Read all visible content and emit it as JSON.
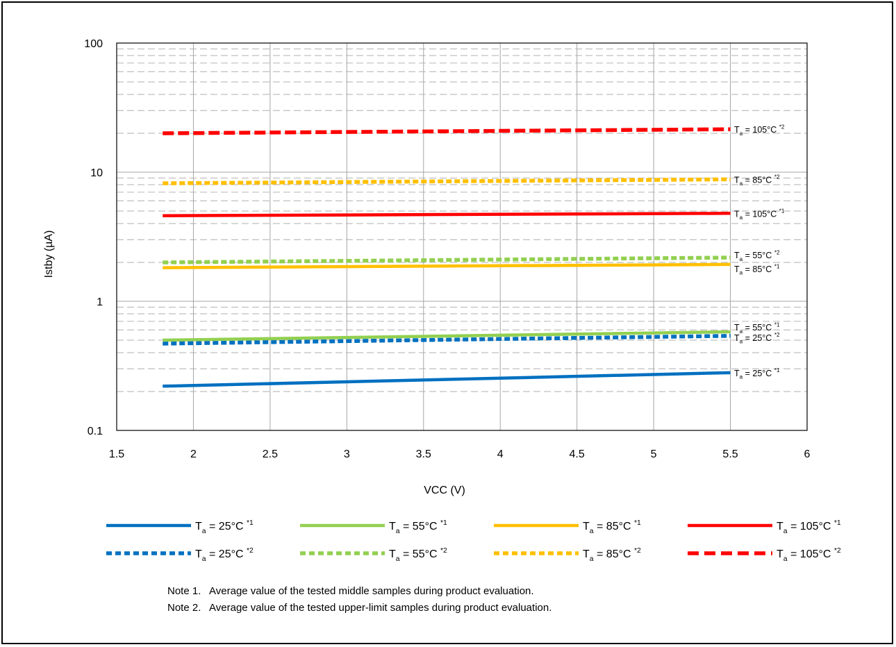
{
  "chart_data": {
    "type": "line",
    "xlabel": "VCC (V)",
    "ylabel": "Istby (µA)",
    "xlim": [
      1.5,
      6
    ],
    "ylim": [
      0.1,
      100
    ],
    "yscale": "log",
    "x_ticks": [
      "1.5",
      "2",
      "2.5",
      "3",
      "3.5",
      "4",
      "4.5",
      "5",
      "5.5",
      "6"
    ],
    "y_ticks": [
      "0.1",
      "1",
      "10",
      "100"
    ],
    "grid": true,
    "legend_position": "bottom",
    "series": [
      {
        "name_main": "T",
        "name_sub": "a",
        "name_rest": " = 25°C ",
        "name_sup": "*1",
        "style": "solid",
        "color": "#0070c0",
        "x": [
          1.8,
          5.5
        ],
        "y": [
          0.22,
          0.28
        ]
      },
      {
        "name_main": "T",
        "name_sub": "a",
        "name_rest": " = 55°C ",
        "name_sup": "*1",
        "style": "solid",
        "color": "#92d050",
        "x": [
          1.8,
          5.5
        ],
        "y": [
          0.5,
          0.58
        ]
      },
      {
        "name_main": "T",
        "name_sub": "a",
        "name_rest": " = 85°C ",
        "name_sup": "*1",
        "style": "solid",
        "color": "#ffc000",
        "x": [
          1.8,
          5.5
        ],
        "y": [
          1.82,
          1.93
        ]
      },
      {
        "name_main": "T",
        "name_sub": "a",
        "name_rest": " = 105°C ",
        "name_sup": "*1",
        "style": "solid",
        "color": "#ff0000",
        "x": [
          1.8,
          5.5
        ],
        "y": [
          4.6,
          4.8
        ]
      },
      {
        "name_main": "T",
        "name_sub": "a",
        "name_rest": " = 25°C ",
        "name_sup": "*2",
        "style": "dash",
        "color": "#0070c0",
        "x": [
          1.8,
          5.5
        ],
        "y": [
          0.47,
          0.54
        ]
      },
      {
        "name_main": "T",
        "name_sub": "a",
        "name_rest": " = 55°C ",
        "name_sup": "*2",
        "style": "dash",
        "color": "#92d050",
        "x": [
          1.8,
          5.5
        ],
        "y": [
          2.0,
          2.18
        ]
      },
      {
        "name_main": "T",
        "name_sub": "a",
        "name_rest": " = 85°C ",
        "name_sup": "*2",
        "style": "dash",
        "color": "#ffc000",
        "x": [
          1.8,
          5.5
        ],
        "y": [
          8.2,
          8.8
        ]
      },
      {
        "name_main": "T",
        "name_sub": "a",
        "name_rest": " = 105°C ",
        "name_sup": "*2",
        "style": "longdash",
        "color": "#ff0000",
        "x": [
          1.8,
          5.5
        ],
        "y": [
          20.0,
          21.5
        ]
      }
    ],
    "end_labels_order": [
      7,
      6,
      3,
      5,
      2,
      1,
      4,
      0
    ]
  },
  "notes": [
    "Note 1.   Average value of the tested middle samples during product evaluation.",
    "Note 2.   Average value of the tested upper-limit samples during product evaluation."
  ]
}
